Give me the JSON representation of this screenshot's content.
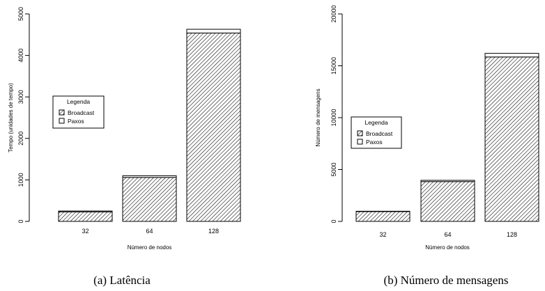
{
  "chart_data": [
    {
      "type": "bar",
      "stacked": true,
      "caption": "(a) Latência",
      "xlabel": "Número de nodos",
      "ylabel": "Tempo (unidades de tempo)",
      "categories": [
        "32",
        "64",
        "128"
      ],
      "ylim": [
        0,
        5000
      ],
      "yticks": [
        0,
        1000,
        2000,
        3000,
        4000,
        5000
      ],
      "series": [
        {
          "name": "Broadcast",
          "values": [
            230,
            1060,
            4540
          ]
        },
        {
          "name": "Paxos",
          "values": [
            20,
            40,
            90
          ]
        }
      ],
      "legend": {
        "title": "Legenda",
        "placement": "left-middle"
      }
    },
    {
      "type": "bar",
      "stacked": true,
      "caption": "(b) Número de mensagens",
      "xlabel": "Número de nodos",
      "ylabel": "Número de mensagens",
      "categories": [
        "32",
        "64",
        "128"
      ],
      "ylim": [
        0,
        20000
      ],
      "yticks": [
        0,
        5000,
        10000,
        15000,
        20000
      ],
      "series": [
        {
          "name": "Broadcast",
          "values": [
            940,
            3840,
            15850
          ]
        },
        {
          "name": "Paxos",
          "values": [
            40,
            120,
            350
          ]
        }
      ],
      "legend": {
        "title": "Legenda",
        "placement": "left-middle"
      }
    }
  ]
}
